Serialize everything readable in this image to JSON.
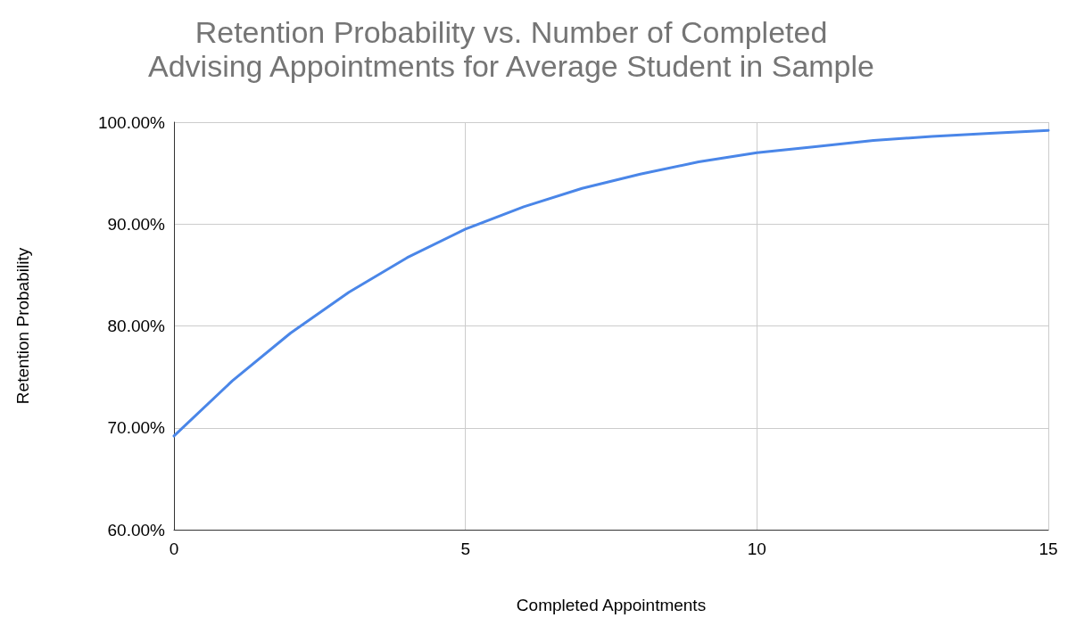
{
  "chart_data": {
    "type": "line",
    "title": "Retention Probability vs. Number of Completed\nAdvising Appointments for Average Student in Sample",
    "xlabel": "Completed Appointments",
    "ylabel": "Retention Probability",
    "x": [
      0,
      1,
      2,
      3,
      4,
      5,
      6,
      7,
      8,
      9,
      10,
      11,
      12,
      13,
      14,
      15
    ],
    "series": [
      {
        "color": "#4a86e8",
        "values": [
          69.2,
          74.6,
          79.3,
          83.3,
          86.7,
          89.5,
          91.7,
          93.5,
          94.9,
          96.1,
          97.0,
          97.6,
          98.2,
          98.6,
          98.9,
          99.2
        ]
      }
    ],
    "xlim": [
      0,
      15
    ],
    "xticks": [
      0,
      5,
      10,
      15
    ],
    "ylim": [
      60,
      100
    ],
    "yticks": [
      {
        "value": 60,
        "label": "60.00%"
      },
      {
        "value": 70,
        "label": "70.00%"
      },
      {
        "value": 80,
        "label": "80.00%"
      },
      {
        "value": 90,
        "label": "90.00%"
      },
      {
        "value": 100,
        "label": "100.00%"
      }
    ],
    "grid": true,
    "marker": "none",
    "line_style": "solid"
  }
}
